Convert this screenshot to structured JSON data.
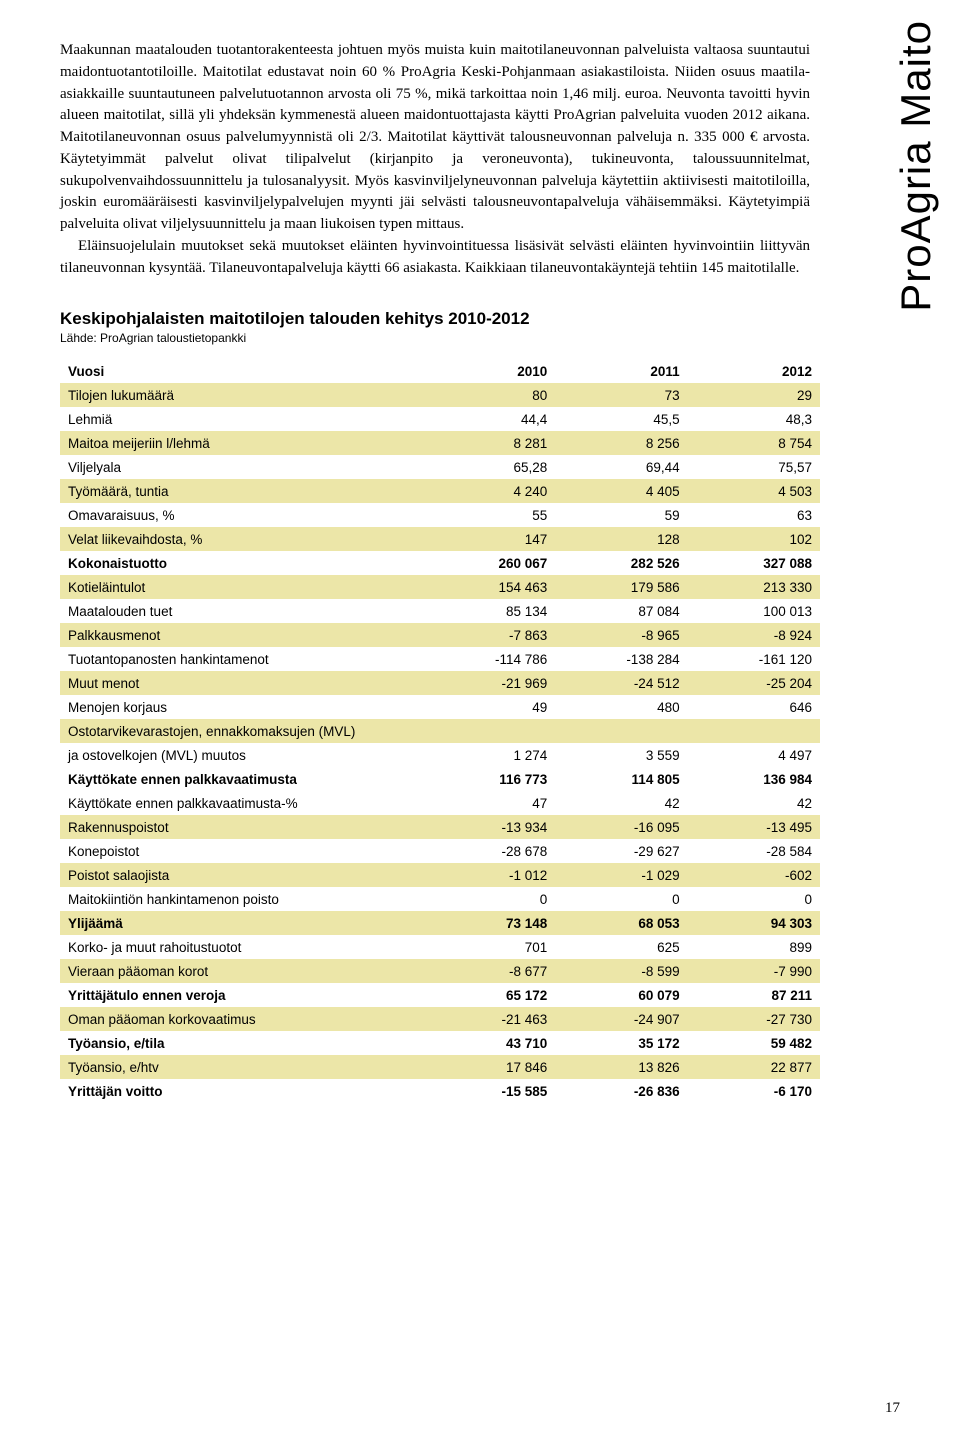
{
  "vertical_label": "ProAgria Maito",
  "paragraphs": [
    "Maakunnan maatalouden tuotantorakenteesta johtuen myös muista kuin maitotilaneuvonnan palveluista valtaosa suuntautui maidontuotantotiloille. Maitotilat edustavat noin 60 % ProAgria Keski-Pohjanmaan asiakastiloista. Niiden osuus maatila-asiakkaille suuntautuneen palvelutuotannon arvosta oli 75 %, mikä tarkoittaa noin 1,46 milj. euroa. Neuvonta tavoitti hyvin alueen maitotilat, sillä yli yhdeksän kymmenestä alueen maidontuottajasta käytti ProAgrian palveluita vuoden 2012 aikana. Maitotilaneuvonnan osuus palvelumyynnistä oli 2/3. Maitotilat käyttivät talousneuvonnan palveluja n. 335 000 € arvosta. Käytetyimmät palvelut olivat tilipalvelut (kirjanpito ja veroneuvonta), tukineuvonta, taloussuunnitelmat, sukupolvenvaihdossuunnittelu ja tulosanalyysit. Myös kasvinviljelyneuvonnan palveluja käytettiin aktiivisesti maitotiloilla, joskin euromääräisesti kasvinviljelypalvelujen myynti jäi selvästi talousneuvontapalveluja vähäisemmäksi. Käytetyimpiä palveluita olivat viljelysuunnittelu ja maan liukoisen typen mittaus.",
    "Eläinsuojelulain muutokset sekä muutokset eläinten hyvinvointituessa lisäsivät selvästi eläinten hyvinvointiin liittyvän tilaneuvonnan kysyntää. Tilaneuvontapalveluja käytti 66 asiakasta. Kaikkiaan tilaneuvontakäyntejä tehtiin 145 maitotilalle."
  ],
  "table": {
    "title": "Keskipohjalaisten maitotilojen talouden kehitys 2010-2012",
    "subtitle": "Lähde: ProAgrian taloustietopankki",
    "stripe_color": "#ece6a8",
    "header": [
      "Vuosi",
      "2010",
      "2011",
      "2012"
    ],
    "rows": [
      {
        "label": "Tilojen lukumäärä",
        "c": [
          "80",
          "73",
          "29"
        ],
        "striped": true,
        "bold": false
      },
      {
        "label": "Lehmiä",
        "c": [
          "44,4",
          "45,5",
          "48,3"
        ],
        "striped": false,
        "bold": false
      },
      {
        "label": "Maitoa meijeriin l/lehmä",
        "c": [
          "8 281",
          "8 256",
          "8 754"
        ],
        "striped": true,
        "bold": false
      },
      {
        "label": "Viljelyala",
        "c": [
          "65,28",
          "69,44",
          "75,57"
        ],
        "striped": false,
        "bold": false
      },
      {
        "label": "Työmäärä, tuntia",
        "c": [
          "4 240",
          "4 405",
          "4 503"
        ],
        "striped": true,
        "bold": false
      },
      {
        "label": "Omavaraisuus, %",
        "c": [
          "55",
          "59",
          "63"
        ],
        "striped": false,
        "bold": false
      },
      {
        "label": "Velat liikevaihdosta, %",
        "c": [
          "147",
          "128",
          "102"
        ],
        "striped": true,
        "bold": false
      },
      {
        "label": "Kokonaistuotto",
        "c": [
          "260 067",
          "282 526",
          "327 088"
        ],
        "striped": false,
        "bold": true
      },
      {
        "label": "Kotieläintulot",
        "c": [
          "154 463",
          "179 586",
          "213 330"
        ],
        "striped": true,
        "bold": false
      },
      {
        "label": "Maatalouden tuet",
        "c": [
          "85 134",
          "87 084",
          "100 013"
        ],
        "striped": false,
        "bold": false
      },
      {
        "label": "Palkkausmenot",
        "c": [
          "-7 863",
          "-8 965",
          "-8 924"
        ],
        "striped": true,
        "bold": false
      },
      {
        "label": "Tuotantopanosten hankintamenot",
        "c": [
          "-114 786",
          "-138 284",
          "-161 120"
        ],
        "striped": false,
        "bold": false
      },
      {
        "label": "Muut menot",
        "c": [
          "-21 969",
          "-24 512",
          "-25 204"
        ],
        "striped": true,
        "bold": false
      },
      {
        "label": "Menojen korjaus",
        "c": [
          "49",
          "480",
          "646"
        ],
        "striped": false,
        "bold": false
      },
      {
        "label": "Ostotarvikevarastojen, ennakkomaksujen (MVL)",
        "c": [
          "",
          "",
          ""
        ],
        "striped": true,
        "bold": false
      },
      {
        "label": "ja ostovelkojen (MVL) muutos",
        "c": [
          "1 274",
          "3 559",
          "4 497"
        ],
        "striped": false,
        "bold": false
      },
      {
        "label": "Käyttökate ennen palkkavaatimusta",
        "c": [
          "116 773",
          "114 805",
          "136 984"
        ],
        "striped": false,
        "bold": true
      },
      {
        "label": "Käyttökate ennen palkkavaatimusta-%",
        "c": [
          "47",
          "42",
          "42"
        ],
        "striped": false,
        "bold": false
      },
      {
        "label": "Rakennuspoistot",
        "c": [
          "-13 934",
          "-16 095",
          "-13 495"
        ],
        "striped": true,
        "bold": false
      },
      {
        "label": "Konepoistot",
        "c": [
          "-28 678",
          "-29 627",
          "-28 584"
        ],
        "striped": false,
        "bold": false
      },
      {
        "label": "Poistot salaojista",
        "c": [
          "-1 012",
          "-1 029",
          "-602"
        ],
        "striped": true,
        "bold": false
      },
      {
        "label": "Maitokiintiön hankintamenon poisto",
        "c": [
          "0",
          "0",
          "0"
        ],
        "striped": false,
        "bold": false
      },
      {
        "label": "Ylijäämä",
        "c": [
          "73 148",
          "68 053",
          "94 303"
        ],
        "striped": true,
        "bold": true
      },
      {
        "label": "Korko- ja muut rahoitustuotot",
        "c": [
          "701",
          "625",
          "899"
        ],
        "striped": false,
        "bold": false
      },
      {
        "label": "Vieraan pääoman korot",
        "c": [
          "-8 677",
          "-8 599",
          "-7 990"
        ],
        "striped": true,
        "bold": false
      },
      {
        "label": "Yrittäjätulo ennen veroja",
        "c": [
          "65 172",
          "60 079",
          "87 211"
        ],
        "striped": false,
        "bold": true
      },
      {
        "label": "Oman pääoman korkovaatimus",
        "c": [
          "-21 463",
          "-24 907",
          "-27 730"
        ],
        "striped": true,
        "bold": false
      },
      {
        "label": "Työansio, e/tila",
        "c": [
          "43 710",
          "35 172",
          "59 482"
        ],
        "striped": false,
        "bold": true
      },
      {
        "label": "Työansio, e/htv",
        "c": [
          "17 846",
          "13 826",
          "22 877"
        ],
        "striped": true,
        "bold": false
      },
      {
        "label": "Yrittäjän voitto",
        "c": [
          "-15 585",
          "-26 836",
          "-6 170"
        ],
        "striped": false,
        "bold": true
      }
    ]
  },
  "page_number": "17"
}
